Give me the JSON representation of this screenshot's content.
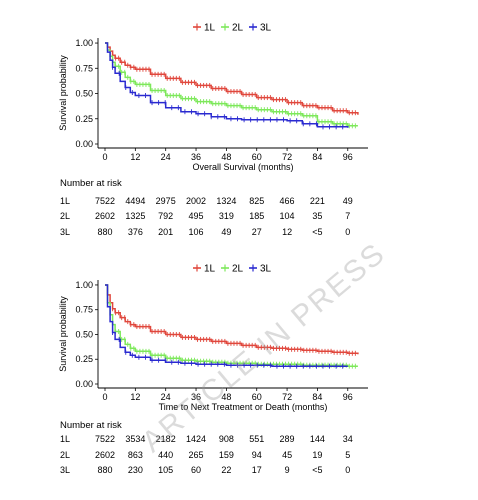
{
  "colors": {
    "1L": "#e0473c",
    "2L": "#7de85a",
    "3L": "#2a2ad0",
    "axis": "#000000"
  },
  "watermark": "ARTICLE IN PRESS",
  "chart_data": [
    {
      "type": "line",
      "legend": [
        "1L",
        "2L",
        "3L"
      ],
      "legend_position": "top-center",
      "xlabel": "Overall Survival (months)",
      "ylabel": "Survival probability",
      "xlim": [
        0,
        104
      ],
      "ylim": [
        0,
        1.05
      ],
      "xticks": [
        0,
        12,
        24,
        36,
        48,
        60,
        72,
        84,
        96
      ],
      "yticks": [
        0.0,
        0.25,
        0.5,
        0.75,
        1.0
      ],
      "ytick_labels": [
        "0.00",
        "0.25",
        "0.50",
        "0.75",
        "1.00"
      ],
      "series": [
        {
          "name": "1L",
          "x": [
            0,
            1,
            2,
            3,
            4,
            6,
            8,
            10,
            12,
            18,
            24,
            30,
            36,
            42,
            48,
            54,
            60,
            66,
            72,
            78,
            84,
            90,
            96,
            100
          ],
          "y": [
            1.0,
            0.96,
            0.92,
            0.88,
            0.85,
            0.81,
            0.78,
            0.76,
            0.74,
            0.69,
            0.65,
            0.61,
            0.58,
            0.55,
            0.52,
            0.49,
            0.46,
            0.44,
            0.41,
            0.38,
            0.36,
            0.33,
            0.31,
            0.29
          ]
        },
        {
          "name": "2L",
          "x": [
            0,
            1,
            2,
            3,
            4,
            6,
            8,
            10,
            12,
            18,
            24,
            30,
            36,
            42,
            48,
            54,
            60,
            66,
            72,
            78,
            84,
            90,
            96,
            100
          ],
          "y": [
            1.0,
            0.93,
            0.87,
            0.81,
            0.77,
            0.71,
            0.66,
            0.62,
            0.59,
            0.53,
            0.48,
            0.45,
            0.42,
            0.4,
            0.38,
            0.36,
            0.34,
            0.32,
            0.3,
            0.28,
            0.22,
            0.2,
            0.18,
            0.18
          ]
        },
        {
          "name": "3L",
          "x": [
            0,
            1,
            2,
            3,
            4,
            6,
            8,
            10,
            12,
            18,
            24,
            30,
            36,
            42,
            48,
            54,
            60,
            66,
            72,
            78,
            84,
            90,
            96
          ],
          "y": [
            1.0,
            0.91,
            0.83,
            0.76,
            0.7,
            0.62,
            0.56,
            0.51,
            0.48,
            0.41,
            0.36,
            0.32,
            0.3,
            0.27,
            0.25,
            0.24,
            0.24,
            0.24,
            0.23,
            0.2,
            0.17,
            0.17,
            0.16
          ]
        }
      ],
      "risk_table": {
        "title": "Number at risk",
        "rows": [
          {
            "name": "1L",
            "values": [
              "7522",
              "4494",
              "2975",
              "2002",
              "1324",
              "825",
              "466",
              "221",
              "49"
            ]
          },
          {
            "name": "2L",
            "values": [
              "2602",
              "1325",
              "792",
              "495",
              "319",
              "185",
              "104",
              "35",
              "7"
            ]
          },
          {
            "name": "3L",
            "values": [
              "880",
              "376",
              "201",
              "106",
              "49",
              "27",
              "12",
              "<5",
              "0"
            ]
          }
        ]
      }
    },
    {
      "type": "line",
      "legend": [
        "1L",
        "2L",
        "3L"
      ],
      "legend_position": "top-center",
      "xlabel": "Time to Next Treatment or Death (months)",
      "ylabel": "Survival probability",
      "xlim": [
        0,
        104
      ],
      "ylim": [
        0,
        1.05
      ],
      "xticks": [
        0,
        12,
        24,
        36,
        48,
        60,
        72,
        84,
        96
      ],
      "yticks": [
        0.0,
        0.25,
        0.5,
        0.75,
        1.0
      ],
      "ytick_labels": [
        "0.00",
        "0.25",
        "0.50",
        "0.75",
        "1.00"
      ],
      "series": [
        {
          "name": "1L",
          "x": [
            0,
            1,
            2,
            3,
            4,
            6,
            8,
            10,
            12,
            18,
            24,
            30,
            36,
            42,
            48,
            54,
            60,
            66,
            72,
            78,
            84,
            90,
            96,
            100
          ],
          "y": [
            1.0,
            0.9,
            0.82,
            0.76,
            0.72,
            0.67,
            0.63,
            0.6,
            0.58,
            0.53,
            0.5,
            0.47,
            0.45,
            0.43,
            0.41,
            0.39,
            0.37,
            0.36,
            0.35,
            0.34,
            0.33,
            0.32,
            0.31,
            0.3
          ]
        },
        {
          "name": "2L",
          "x": [
            0,
            1,
            2,
            3,
            4,
            6,
            8,
            10,
            12,
            18,
            24,
            30,
            36,
            42,
            48,
            54,
            60,
            66,
            72,
            78,
            84,
            90,
            96,
            100
          ],
          "y": [
            1.0,
            0.82,
            0.7,
            0.6,
            0.53,
            0.45,
            0.4,
            0.36,
            0.33,
            0.29,
            0.26,
            0.24,
            0.23,
            0.22,
            0.21,
            0.21,
            0.2,
            0.2,
            0.2,
            0.19,
            0.19,
            0.19,
            0.18,
            0.18
          ]
        },
        {
          "name": "3L",
          "x": [
            0,
            1,
            2,
            3,
            4,
            6,
            8,
            10,
            12,
            18,
            24,
            30,
            36,
            42,
            48,
            54,
            60,
            66,
            72,
            78,
            84,
            90,
            96
          ],
          "y": [
            1.0,
            0.78,
            0.63,
            0.52,
            0.45,
            0.37,
            0.32,
            0.29,
            0.27,
            0.24,
            0.22,
            0.21,
            0.2,
            0.2,
            0.19,
            0.19,
            0.19,
            0.18,
            0.18,
            0.18,
            0.18,
            0.18,
            0.18
          ]
        }
      ],
      "risk_table": {
        "title": "Number at risk",
        "rows": [
          {
            "name": "1L",
            "values": [
              "7522",
              "3534",
              "2182",
              "1424",
              "908",
              "551",
              "289",
              "144",
              "34"
            ]
          },
          {
            "name": "2L",
            "values": [
              "2602",
              "863",
              "440",
              "265",
              "159",
              "94",
              "45",
              "19",
              "5"
            ]
          },
          {
            "name": "3L",
            "values": [
              "880",
              "230",
              "105",
              "60",
              "22",
              "17",
              "9",
              "<5",
              "0"
            ]
          }
        ]
      }
    }
  ]
}
